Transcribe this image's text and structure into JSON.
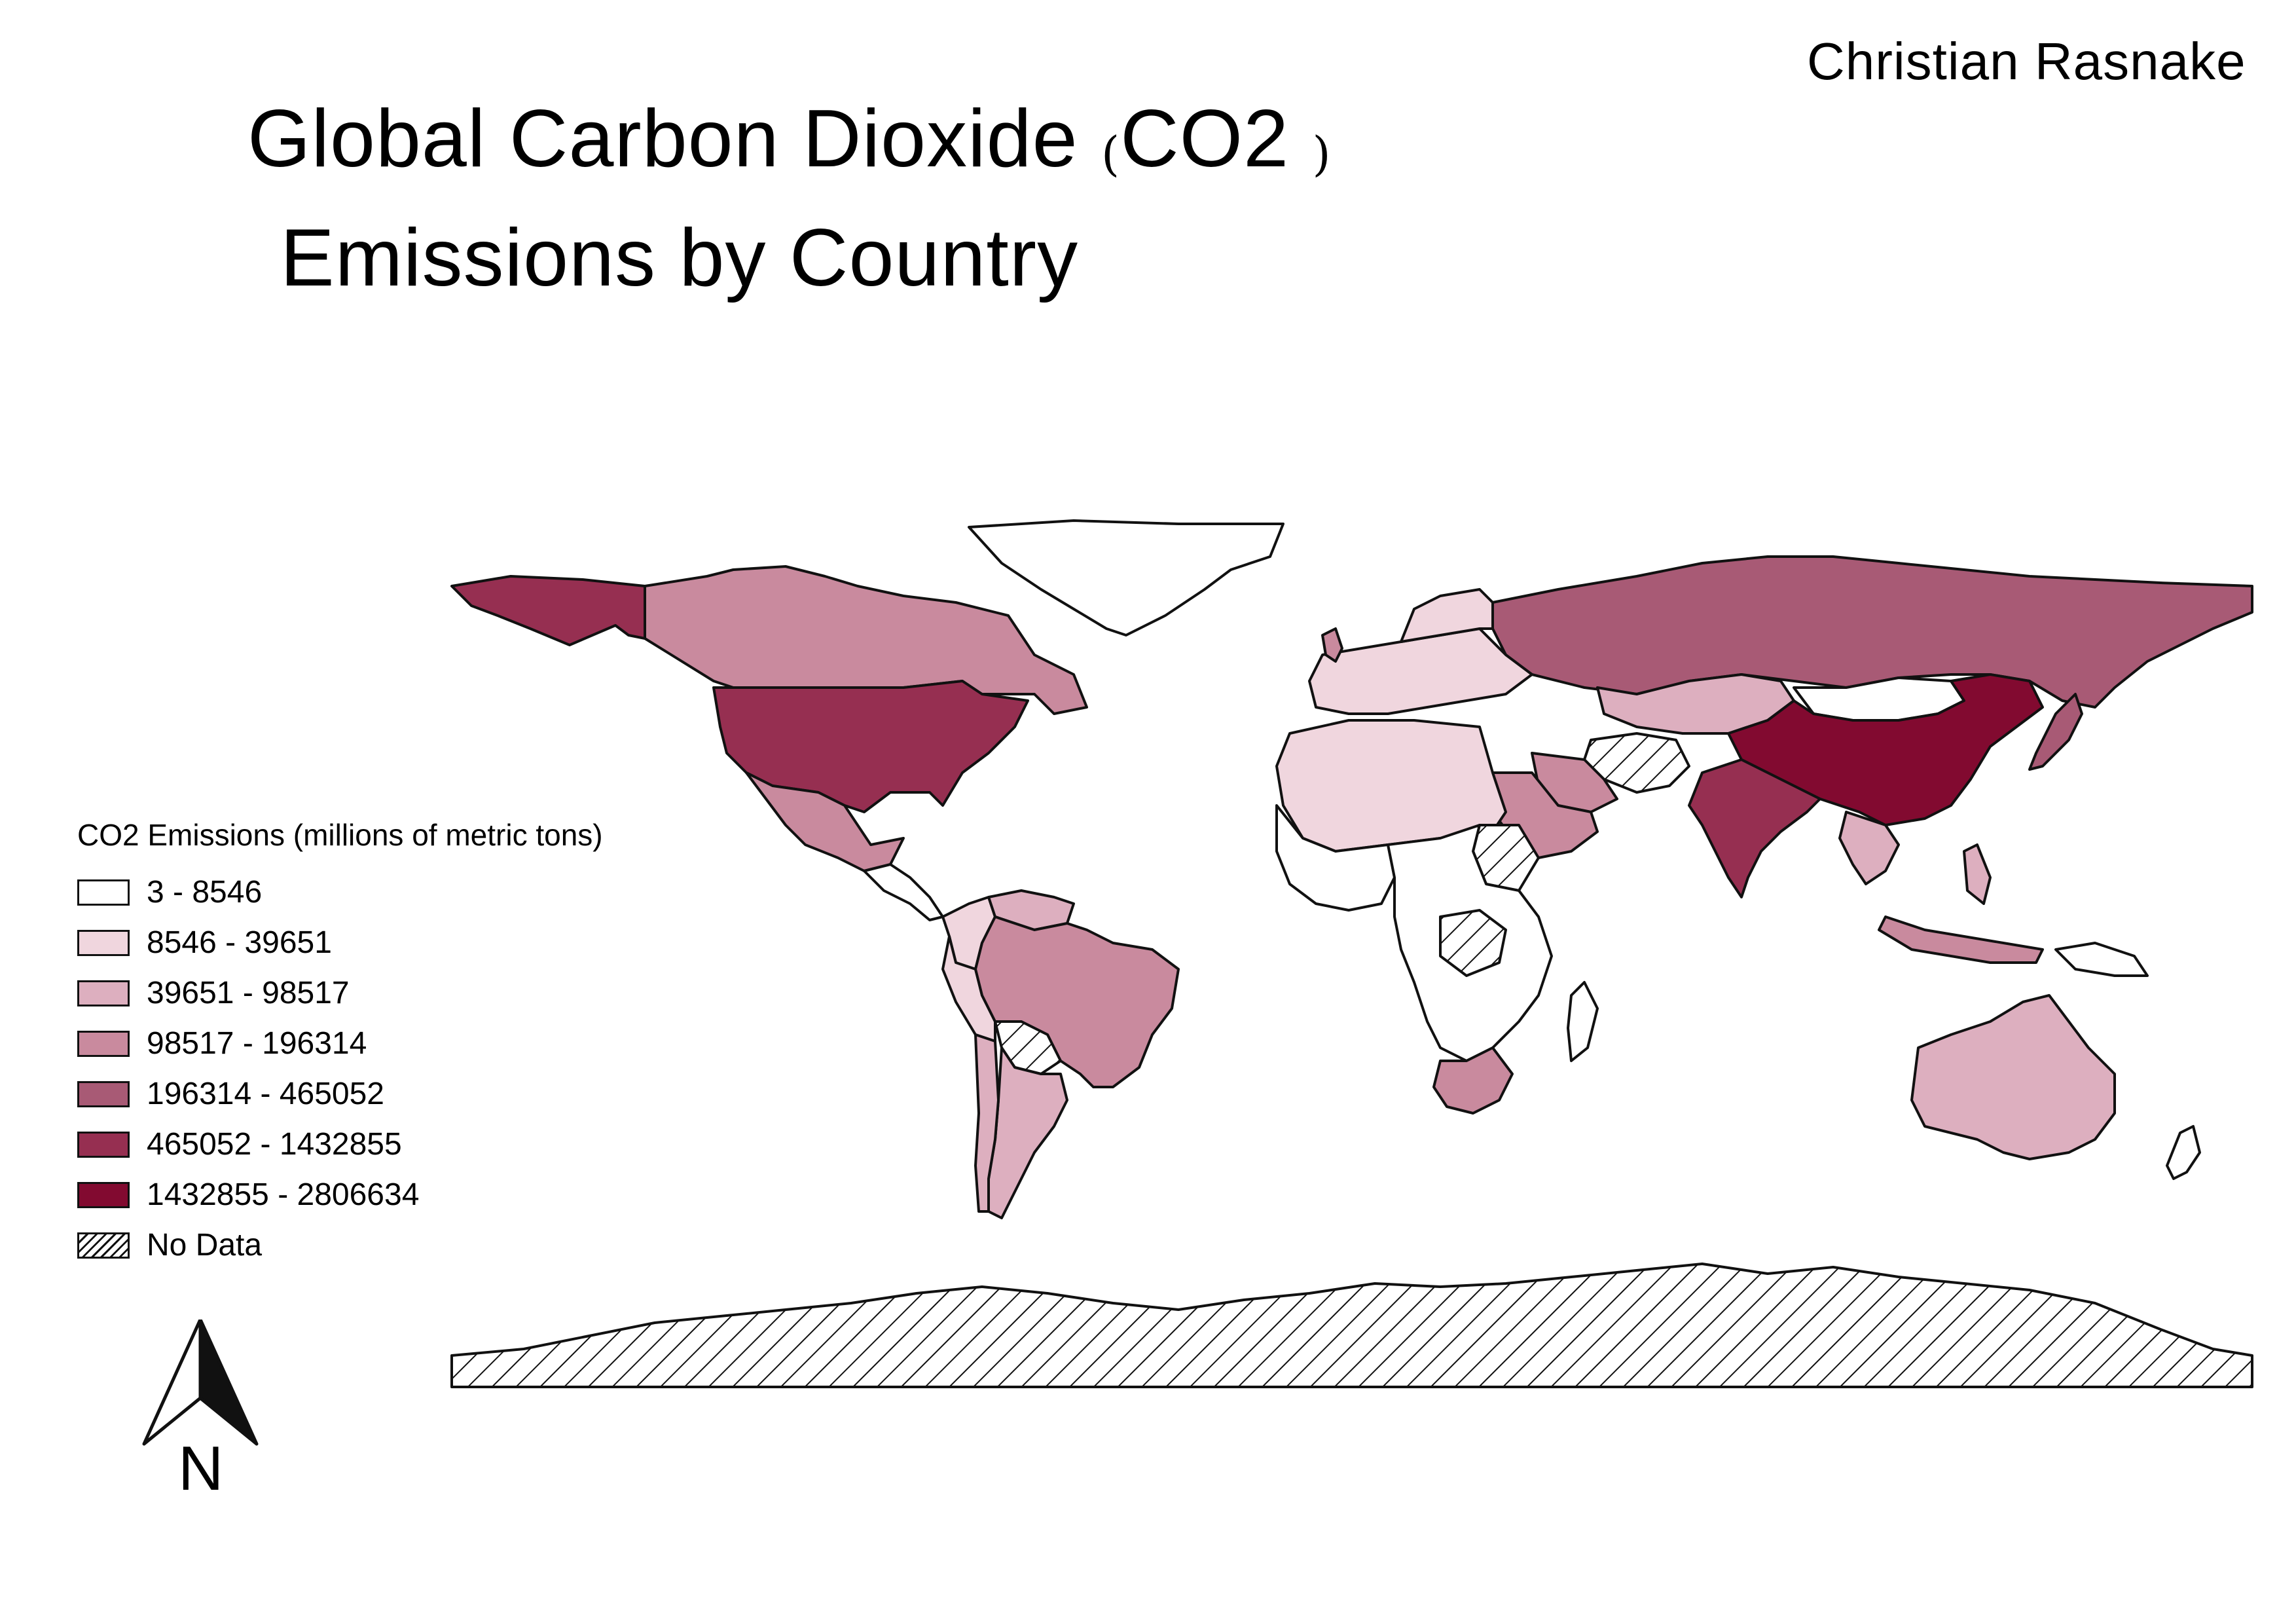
{
  "author": "Christian Rasnake",
  "title": {
    "line1_main": "Global Carbon Dioxide",
    "paren_open": "(",
    "line1_abbrev": "CO2",
    "paren_close": ")",
    "line2": "Emissions by Country"
  },
  "legend": {
    "title": "CO2 Emissions (millions of metric tons)",
    "items": [
      {
        "label": "3 - 8546",
        "color": "#ffffff"
      },
      {
        "label": "8546 - 39651",
        "color": "#f0d6de"
      },
      {
        "label": "39651 - 98517",
        "color": "#ddafbf"
      },
      {
        "label": "98517 - 196314",
        "color": "#c98a9e"
      },
      {
        "label": "196314 - 465052",
        "color": "#a85a75"
      },
      {
        "label": "465052 - 1432855",
        "color": "#962f51"
      },
      {
        "label": "1432855 - 2806634",
        "color": "#820a30"
      },
      {
        "label": "No Data",
        "color": "hatch"
      }
    ]
  },
  "north_arrow": {
    "label": "N"
  },
  "map": {
    "countries": [
      {
        "name": "Alaska (US)",
        "class": 5
      },
      {
        "name": "Canada",
        "class": 3
      },
      {
        "name": "United States",
        "class": 5
      },
      {
        "name": "Mexico",
        "class": 3
      },
      {
        "name": "Brazil",
        "class": 3
      },
      {
        "name": "Argentina",
        "class": 2
      },
      {
        "name": "Russia",
        "class": 4
      },
      {
        "name": "China",
        "class": 6
      },
      {
        "name": "India",
        "class": 5
      },
      {
        "name": "Japan",
        "class": 4
      },
      {
        "name": "Kazakhstan",
        "class": 2
      },
      {
        "name": "Iran",
        "class": 3
      },
      {
        "name": "Saudi Arabia",
        "class": 3
      },
      {
        "name": "South Africa",
        "class": 3
      },
      {
        "name": "Australia",
        "class": 2
      },
      {
        "name": "Indonesia",
        "class": 3
      },
      {
        "name": "Antarctica",
        "class": "nodata"
      },
      {
        "name": "Greenland",
        "class": 0
      }
    ]
  }
}
